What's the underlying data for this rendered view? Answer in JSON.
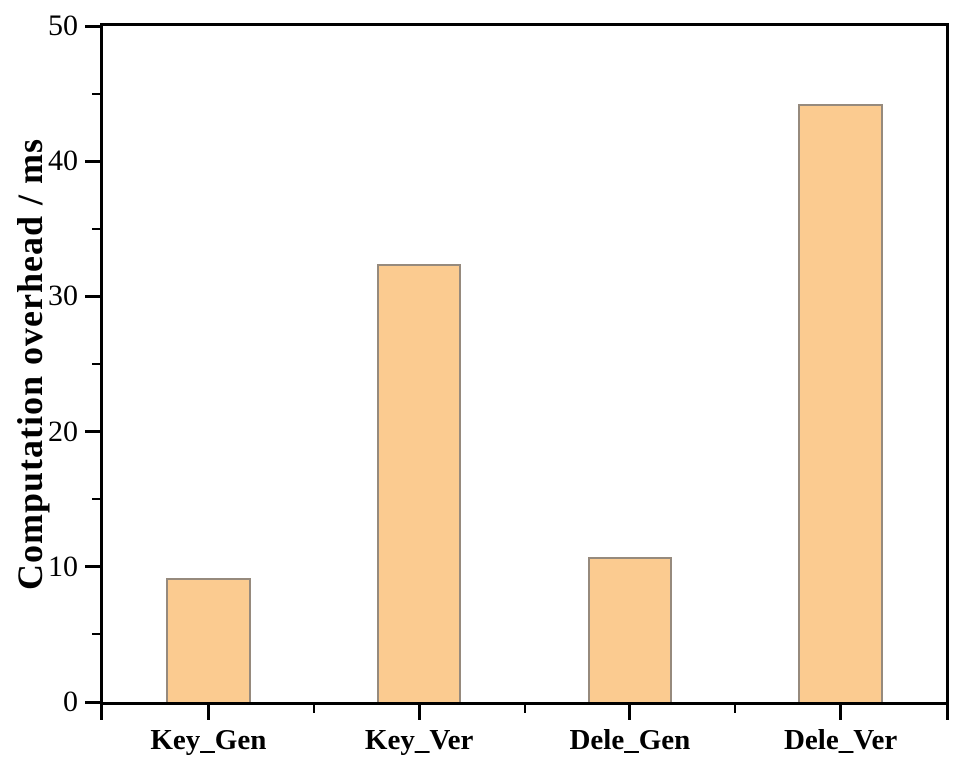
{
  "figure": {
    "background": "#ffffff"
  },
  "chart_data": {
    "type": "bar",
    "categories": [
      "Key_Gen",
      "Key_Ver",
      "Dele_Gen",
      "Dele_Ver"
    ],
    "values": [
      9.2,
      32.4,
      10.7,
      44.2
    ],
    "title": "",
    "xlabel": "",
    "ylabel": "Computation overhead / ms",
    "ylim": [
      0,
      50
    ],
    "yticks": [
      0,
      10,
      20,
      30,
      40,
      50
    ],
    "minor_yticks": [
      5,
      15,
      25,
      35,
      45
    ],
    "bar_width_fraction": 0.4,
    "grid": false,
    "legend": "none",
    "units": "ms",
    "colors": {
      "bar_fill": "#fbcb90",
      "bar_border": "#968a7d",
      "axis": "#000000",
      "text": "#000000"
    }
  }
}
